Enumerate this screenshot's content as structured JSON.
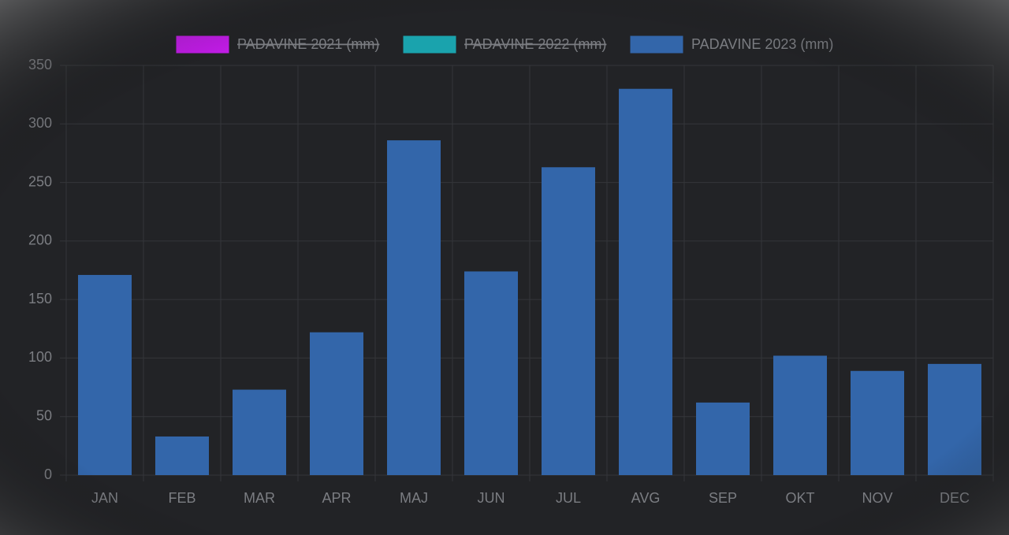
{
  "chart_data": {
    "type": "bar",
    "categories": [
      "JAN",
      "FEB",
      "MAR",
      "APR",
      "MAJ",
      "JUN",
      "JUL",
      "AVG",
      "SEP",
      "OKT",
      "NOV",
      "DEC"
    ],
    "series": [
      {
        "name": "PADAVINE 2021 (mm)",
        "color": "#c21ce8",
        "hidden": true,
        "values": [
          null,
          null,
          null,
          null,
          null,
          null,
          null,
          null,
          null,
          null,
          null,
          null
        ]
      },
      {
        "name": "PADAVINE 2022 (mm)",
        "color": "#1aa3ad",
        "hidden": true,
        "values": [
          null,
          null,
          null,
          null,
          null,
          null,
          null,
          null,
          null,
          null,
          null,
          null
        ]
      },
      {
        "name": "PADAVINE 2023 (mm)",
        "color": "#3366aa",
        "hidden": false,
        "values": [
          171,
          33,
          73,
          122,
          286,
          174,
          263,
          330,
          62,
          102,
          89,
          95
        ]
      }
    ],
    "ylim": [
      0,
      350
    ],
    "yticks": [
      0,
      50,
      100,
      150,
      200,
      250,
      300,
      350
    ],
    "grid": true,
    "legend": "top"
  }
}
